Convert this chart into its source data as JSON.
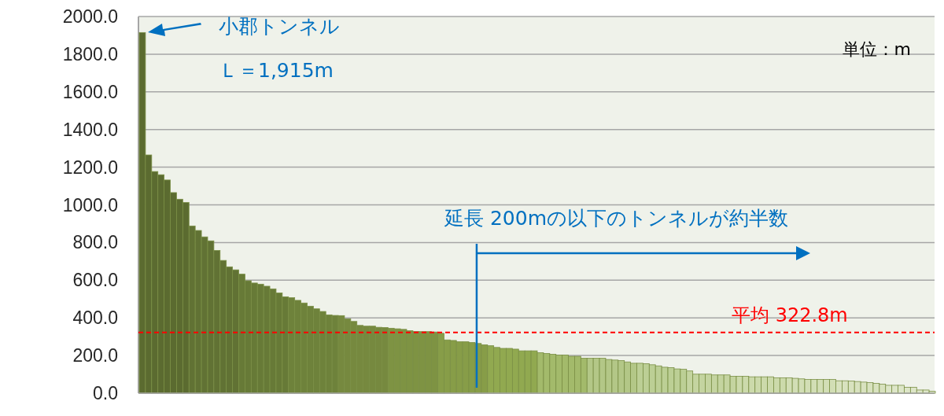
{
  "chart_data": {
    "type": "bar",
    "categories": [
      null,
      null,
      null,
      null,
      null,
      null,
      null,
      null,
      null,
      null,
      null,
      null,
      null,
      null,
      null,
      null,
      null,
      null,
      null,
      null,
      null,
      null,
      null,
      null,
      null,
      null,
      null,
      null,
      null,
      null,
      null,
      null,
      null,
      null,
      null,
      null,
      null,
      null,
      null,
      null,
      null,
      null,
      null,
      null,
      null,
      null,
      null,
      null,
      null,
      null,
      null,
      null,
      null,
      null,
      null,
      null,
      null,
      null,
      null,
      null,
      null,
      null,
      null,
      null,
      null,
      null,
      null,
      null,
      null,
      null,
      null,
      null,
      null,
      null,
      null,
      null,
      null,
      null,
      null,
      null,
      null,
      null,
      null,
      null,
      null,
      null,
      null,
      null,
      null,
      null,
      null,
      null,
      null,
      null,
      null,
      null,
      null,
      null,
      null,
      null,
      null,
      null,
      null,
      null,
      null,
      null,
      null,
      null,
      null,
      null,
      null,
      null,
      null,
      null,
      null,
      null,
      null,
      null,
      null,
      null,
      null,
      null,
      null,
      null,
      null,
      null,
      null,
      null
    ],
    "values": [
      1915,
      1265,
      1177,
      1160,
      1132,
      1065,
      1030,
      1013,
      888,
      864,
      830,
      809,
      758,
      705,
      671,
      655,
      632,
      597,
      585,
      579,
      568,
      554,
      532,
      512,
      507,
      493,
      479,
      462,
      448,
      434,
      416,
      413,
      412,
      395,
      381,
      360,
      356,
      356,
      350,
      349,
      345,
      342,
      339,
      332,
      328,
      327,
      327,
      325,
      318,
      283,
      280,
      273,
      273,
      269,
      264,
      257,
      252,
      243,
      238,
      238,
      234,
      225,
      225,
      225,
      215,
      211,
      207,
      203,
      203,
      196,
      196,
      186,
      186,
      186,
      186,
      179,
      176,
      173,
      166,
      159,
      159,
      157,
      151,
      145,
      138,
      136,
      129,
      127,
      118,
      101,
      101,
      101,
      97,
      97,
      97,
      90,
      90,
      90,
      87,
      87,
      87,
      87,
      82,
      82,
      82,
      79,
      76,
      73,
      73,
      73,
      73,
      73,
      66,
      66,
      65,
      62,
      59,
      56,
      52,
      48,
      42,
      42,
      42,
      31,
      31,
      17,
      17,
      10
    ],
    "colors": [
      "#5b6b30",
      "#5b6b30",
      "#5b6b30",
      "#5b6b30",
      "#5b6b30",
      "#5b6b30",
      "#5b6b30",
      "#5b6b30",
      "#617234",
      "#617234",
      "#617234",
      "#617234",
      "#617234",
      "#617234",
      "#617234",
      "#617234",
      "#677a37",
      "#677a37",
      "#677a37",
      "#677a37",
      "#677a37",
      "#677a37",
      "#677a37",
      "#677a37",
      "#6e823b",
      "#6e823b",
      "#6e823b",
      "#6e823b",
      "#6e823b",
      "#6e823b",
      "#6e823b",
      "#6e823b",
      "#76893f",
      "#76893f",
      "#76893f",
      "#76893f",
      "#76893f",
      "#76893f",
      "#76893f",
      "#76893f",
      "#7e9343",
      "#7e9343",
      "#7e9343",
      "#7e9343",
      "#7e9343",
      "#7e9343",
      "#7e9343",
      "#7e9343",
      "#879d48",
      "#879d48",
      "#879d48",
      "#879d48",
      "#879d48",
      "#879d48",
      "#879d48",
      "#879d48",
      "#91a950",
      "#91a950",
      "#91a950",
      "#91a950",
      "#91a950",
      "#91a950",
      "#91a950",
      "#91a950",
      "#a3ba6b",
      "#a3ba6b",
      "#a3ba6b",
      "#a3ba6b",
      "#a3ba6b",
      "#a3ba6b",
      "#a3ba6b",
      "#a3ba6b",
      "#b3c787",
      "#b3c787",
      "#b3c787",
      "#b3c787",
      "#b3c787",
      "#b3c787",
      "#b3c787",
      "#b3c787",
      "#bccf95",
      "#bccf95",
      "#bccf95",
      "#bccf95",
      "#bccf95",
      "#bccf95",
      "#bccf95",
      "#bccf95",
      "#c4d4a0",
      "#c4d4a0",
      "#c4d4a0",
      "#c4d4a0",
      "#c4d4a0",
      "#c4d4a0",
      "#c4d4a0",
      "#c4d4a0",
      "#ccdaab",
      "#ccdaab",
      "#ccdaab",
      "#ccdaab",
      "#ccdaab",
      "#ccdaab",
      "#ccdaab",
      "#ccdaab",
      "#d2deb5",
      "#d2deb5",
      "#d2deb5",
      "#d2deb5",
      "#d2deb5",
      "#d2deb5",
      "#d2deb5",
      "#d2deb5",
      "#d8e2bf",
      "#d8e2bf",
      "#d8e2bf",
      "#d8e2bf",
      "#d8e2bf",
      "#d8e2bf",
      "#d8e2bf",
      "#d8e2bf",
      "#dde6c8",
      "#dde6c8",
      "#dde6c8",
      "#dde6c8",
      "#dde6c8",
      "#dde6c8",
      "#dde6c8",
      "#dde6c8"
    ],
    "ylim": [
      0,
      2000
    ],
    "yticks": [
      {
        "value": 0,
        "label": "0.0"
      },
      {
        "value": 200,
        "label": "200.0"
      },
      {
        "value": 400,
        "label": "400.0"
      },
      {
        "value": 600,
        "label": "600.0"
      },
      {
        "value": 800,
        "label": "800.0"
      },
      {
        "value": 1000,
        "label": "1000.0"
      },
      {
        "value": 1200,
        "label": "1200.0"
      },
      {
        "value": 1400,
        "label": "1400.0"
      },
      {
        "value": 1600,
        "label": "1600.0"
      },
      {
        "value": 1800,
        "label": "1800.0"
      },
      {
        "value": 2000,
        "label": "2000.0"
      }
    ],
    "grid": "y",
    "annotations": [
      "小郡トンネル",
      "Ｌ＝1,915m",
      "単位：m",
      "延長 200mの以下のトンネルが約半数"
    ],
    "ref_lines": [
      {
        "axis": "y",
        "value": 322.8,
        "label": "平均 322.8m",
        "color": "#ff0000",
        "line_style": "dashed"
      }
    ]
  }
}
